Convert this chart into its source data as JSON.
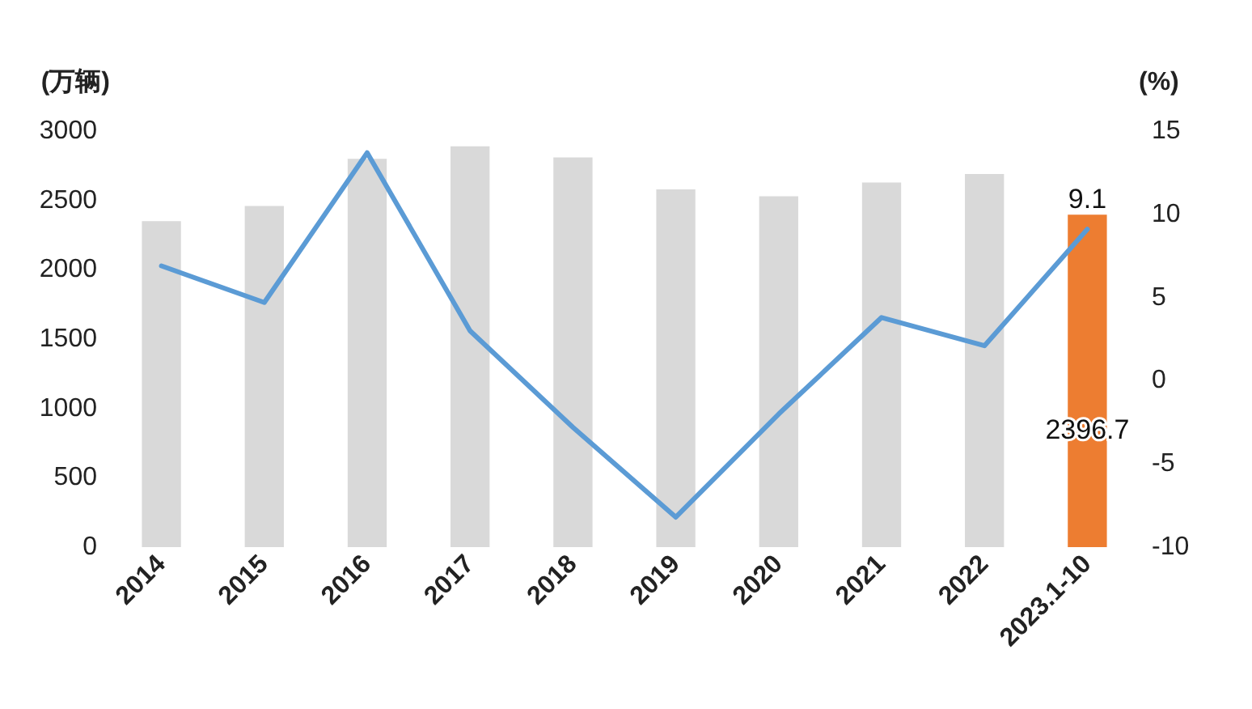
{
  "chart_data": {
    "type": "bar",
    "ylabel": "(万辆)",
    "y2label": "(%)",
    "categories": [
      "2014",
      "2015",
      "2016",
      "2017",
      "2018",
      "2019",
      "2020",
      "2021",
      "2022",
      "2023.1-10"
    ],
    "series": [
      {
        "colors": [
          "#d9d9d9",
          "#d9d9d9",
          "#d9d9d9",
          "#d9d9d9",
          "#d9d9d9",
          "#d9d9d9",
          "#d9d9d9",
          "#d9d9d9",
          "#d9d9d9",
          "#ed7d31"
        ],
        "values": [
          2350,
          2460,
          2800,
          2890,
          2810,
          2580,
          2530,
          2630,
          2690,
          2396.7
        ],
        "value_labels": [
          null,
          null,
          null,
          null,
          null,
          null,
          null,
          null,
          null,
          "2396.7"
        ]
      },
      {
        "type": "line",
        "axis": "y2",
        "color": "#5b9bd5",
        "values": [
          6.9,
          4.7,
          13.7,
          3.0,
          -2.8,
          -8.2,
          -2.0,
          3.8,
          2.1,
          9.1
        ],
        "value_labels": [
          null,
          null,
          null,
          null,
          null,
          null,
          null,
          null,
          null,
          "9.1"
        ]
      }
    ],
    "ylim": [
      0,
      3000
    ],
    "yticks": [
      0,
      500,
      1000,
      1500,
      2000,
      2500,
      3000
    ],
    "y2lim": [
      -10,
      15
    ],
    "y2ticks": [
      -10,
      -5,
      0,
      5,
      10,
      15
    ],
    "grid": false,
    "marker": "none",
    "line_style": "solid"
  }
}
